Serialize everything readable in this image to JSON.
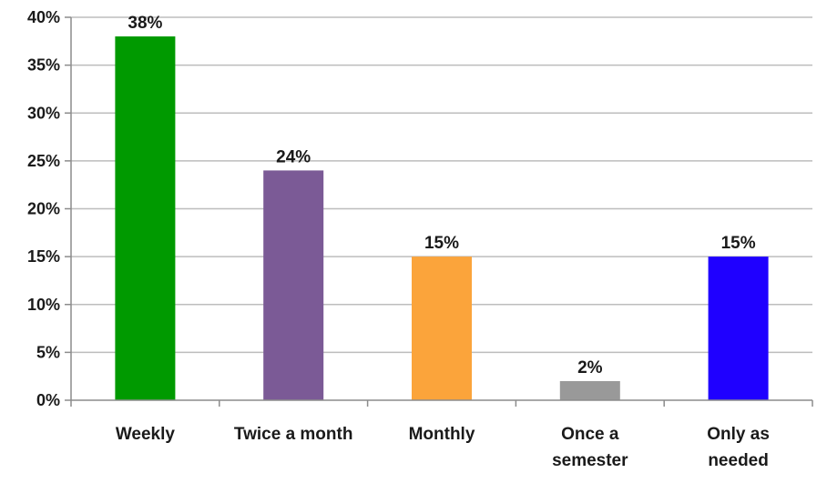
{
  "chart_data": {
    "type": "bar",
    "title": "",
    "xlabel": "",
    "ylabel": "",
    "categories": [
      [
        "Weekly"
      ],
      [
        "Twice a month"
      ],
      [
        "Monthly"
      ],
      [
        "Once a",
        "semester"
      ],
      [
        "Only as",
        "needed"
      ]
    ],
    "values": [
      38,
      24,
      15,
      2,
      15
    ],
    "data_labels": [
      "38%",
      "24%",
      "15%",
      "2%",
      "15%"
    ],
    "colors": [
      "#009a00",
      "#7b5a96",
      "#fba43b",
      "#999999",
      "#1f00ff"
    ],
    "ylim": [
      0,
      40
    ],
    "yticks": [
      0,
      5,
      10,
      15,
      20,
      25,
      30,
      35,
      40
    ],
    "ytick_labels": [
      "0%",
      "5%",
      "10%",
      "15%",
      "20%",
      "25%",
      "30%",
      "35%",
      "40%"
    ],
    "grid": true,
    "legend": "none"
  }
}
